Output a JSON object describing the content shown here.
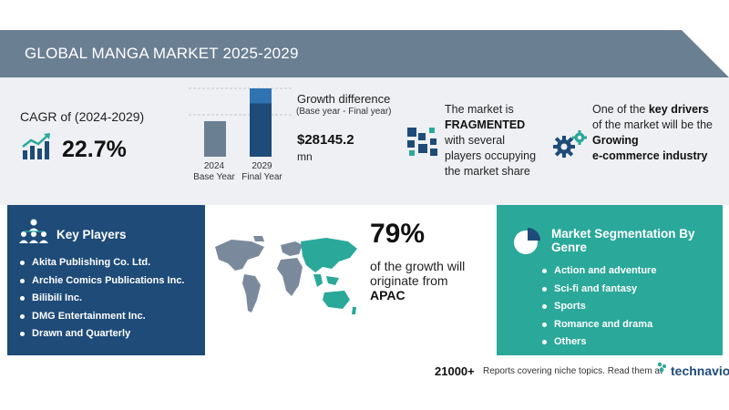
{
  "title": "GLOBAL MANGA MARKET 2025-2029",
  "cagr": {
    "label": "CAGR of (2024-2029)",
    "value": "22.7%"
  },
  "growth": {
    "label": "Growth difference",
    "sublabel": "(Base year - Final year)",
    "value": "$28145.2",
    "unit": "mn"
  },
  "chart_data": {
    "type": "bar",
    "categories": [
      "2024 Base Year",
      "2029 Final Year"
    ],
    "bars": [
      {
        "year": "2024",
        "caption": "Base Year",
        "value": 0.52
      },
      {
        "year": "2029",
        "caption": "Final Year",
        "value": 0.78,
        "value_upper": 1.0
      }
    ],
    "colors": {
      "base": "#6b7f93",
      "final_dark": "#1e4b78",
      "final_light": "#2f73b2"
    }
  },
  "market_structure": {
    "line1": "The market is",
    "highlight": "FRAGMENTED",
    "line3": "with several",
    "line4": "players occupying",
    "line5": "the market share"
  },
  "drivers": {
    "line1_pre": "One of the ",
    "line1_bold": "key drivers",
    "line2": "of the market will be the",
    "line3": "Growing",
    "line4": "e-commerce industry"
  },
  "key_players": {
    "heading": "Key Players",
    "items": [
      "Akita Publishing Co. Ltd.",
      "Archie Comics Publications Inc.",
      "Bilibili Inc.",
      "DMG Entertainment Inc.",
      "Drawn and Quarterly"
    ]
  },
  "region": {
    "percent": "79%",
    "text": "of the growth will originate from",
    "name": "APAC"
  },
  "segmentation": {
    "heading_line1": "Market Segmentation By",
    "heading_line2": "Genre",
    "items": [
      "Action and adventure",
      "Sci-fi and fantasy",
      "Sports",
      "Romance and drama",
      "Others"
    ]
  },
  "footer": {
    "count": "21000+",
    "text": "Reports covering niche topics. Read them at",
    "brand": "technavio"
  },
  "colors": {
    "title_bar": "#6b7f93",
    "navy": "#1e4b78",
    "teal": "#2aa89a",
    "band": "#eef0f3"
  }
}
